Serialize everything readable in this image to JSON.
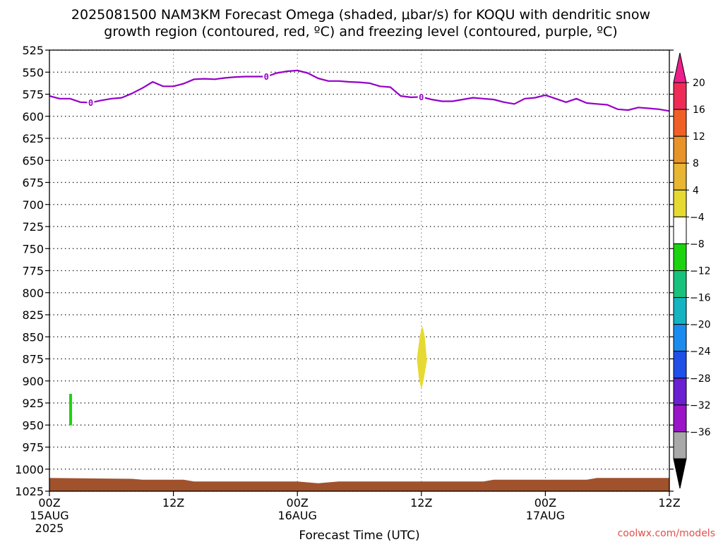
{
  "chart_data": {
    "type": "time-height",
    "title_lines": [
      "2025081500 NAM3KM Forecast Omega (shaded, μbar/s) for KOQU with dendritic snow",
      "growth region (contoured, red, ºC) and freezing level (contoured, purple, ºC)"
    ],
    "xlabel": "Forecast Time (UTC)",
    "credit": "coolwx.com/models",
    "x_range_hours": [
      0,
      60
    ],
    "x_ticks": [
      {
        "hour": 0,
        "label": "00Z",
        "sub": [
          "15AUG",
          "2025"
        ]
      },
      {
        "hour": 12,
        "label": "12Z",
        "sub": []
      },
      {
        "hour": 24,
        "label": "00Z",
        "sub": [
          "16AUG"
        ]
      },
      {
        "hour": 36,
        "label": "12Z",
        "sub": []
      },
      {
        "hour": 48,
        "label": "00Z",
        "sub": [
          "17AUG"
        ]
      },
      {
        "hour": 60,
        "label": "12Z",
        "sub": []
      }
    ],
    "y_range_hpa": [
      525,
      1025
    ],
    "y_ticks": [
      525,
      550,
      575,
      600,
      625,
      650,
      675,
      700,
      725,
      750,
      775,
      800,
      825,
      850,
      875,
      900,
      925,
      950,
      975,
      1000,
      1025
    ],
    "grid": true,
    "freezing_level": {
      "label": "0",
      "color": "#9400c8",
      "points": [
        [
          0,
          577
        ],
        [
          1,
          580
        ],
        [
          2,
          580
        ],
        [
          3,
          584
        ],
        [
          4,
          584.5
        ],
        [
          5,
          582
        ],
        [
          6,
          580
        ],
        [
          7,
          579
        ],
        [
          8,
          574
        ],
        [
          9,
          568
        ],
        [
          10,
          561
        ],
        [
          11,
          566
        ],
        [
          12,
          566
        ],
        [
          13,
          563
        ],
        [
          14,
          558
        ],
        [
          15,
          557.5
        ],
        [
          16,
          558
        ],
        [
          17,
          556.5
        ],
        [
          18,
          555.5
        ],
        [
          19,
          555
        ],
        [
          20,
          555
        ],
        [
          21,
          555
        ],
        [
          22,
          551
        ],
        [
          23,
          549
        ],
        [
          24,
          548
        ],
        [
          25,
          551
        ],
        [
          26,
          557
        ],
        [
          27,
          560
        ],
        [
          28,
          560
        ],
        [
          29,
          561
        ],
        [
          30,
          561.5
        ],
        [
          31,
          562.5
        ],
        [
          32,
          566
        ],
        [
          33,
          567
        ],
        [
          34,
          577
        ],
        [
          35,
          578.5
        ],
        [
          36,
          578
        ],
        [
          37,
          581
        ],
        [
          38,
          583
        ],
        [
          39,
          583
        ],
        [
          40,
          581
        ],
        [
          41,
          579
        ],
        [
          42,
          580
        ],
        [
          43,
          581
        ],
        [
          44,
          584
        ],
        [
          45,
          586
        ],
        [
          46,
          580
        ],
        [
          47,
          579
        ],
        [
          48,
          576
        ],
        [
          49,
          580
        ],
        [
          50,
          584
        ],
        [
          51,
          580
        ],
        [
          52,
          585
        ],
        [
          53,
          586
        ],
        [
          54,
          587
        ],
        [
          55,
          592
        ],
        [
          56,
          593
        ],
        [
          57,
          590
        ],
        [
          58,
          591
        ],
        [
          59,
          592
        ],
        [
          60,
          594
        ]
      ],
      "label_positions": [
        [
          4,
          584.5
        ],
        [
          21,
          555
        ],
        [
          36,
          578
        ]
      ]
    },
    "shaded_regions": [
      {
        "value_range": "4 to 8",
        "color": "#e6da32",
        "points": [
          [
            35.6,
            875
          ],
          [
            35.9,
            848
          ],
          [
            36.1,
            839
          ],
          [
            36.3,
            850
          ],
          [
            36.5,
            877
          ],
          [
            36.2,
            898
          ],
          [
            36,
            908
          ],
          [
            35.8,
            898
          ]
        ]
      },
      {
        "value_range": "-8 to -4",
        "color": "#1bd40f",
        "points": [
          [
            1.95,
            915
          ],
          [
            2.15,
            915
          ],
          [
            2.15,
            950
          ],
          [
            1.95,
            950
          ]
        ]
      }
    ],
    "terrain": {
      "color": "#a0522d",
      "surface_hpa": [
        [
          0,
          1010
        ],
        [
          8,
          1011
        ],
        [
          9,
          1012
        ],
        [
          13,
          1012
        ],
        [
          14,
          1014
        ],
        [
          24,
          1014
        ],
        [
          26,
          1016
        ],
        [
          28,
          1014
        ],
        [
          42,
          1014
        ],
        [
          43,
          1012
        ],
        [
          52,
          1012
        ],
        [
          53,
          1010
        ],
        [
          60,
          1010
        ]
      ]
    },
    "colorbar": {
      "levels": [
        20,
        16,
        12,
        8,
        4,
        -4,
        -8,
        -12,
        -16,
        -20,
        -24,
        -28,
        -32,
        -36
      ],
      "colors": [
        "#ee2b56",
        "#f06026",
        "#e8922a",
        "#e8b632",
        "#e6da32",
        "#ffffff",
        "#1bd40f",
        "#19c27c",
        "#14b4c2",
        "#1a8cf0",
        "#2050e8",
        "#6a1fd0",
        "#9a14c8",
        "#a8a8a8"
      ],
      "top_arrow_color": "#ee1e8c",
      "bottom_arrow_color": "#000000"
    }
  }
}
